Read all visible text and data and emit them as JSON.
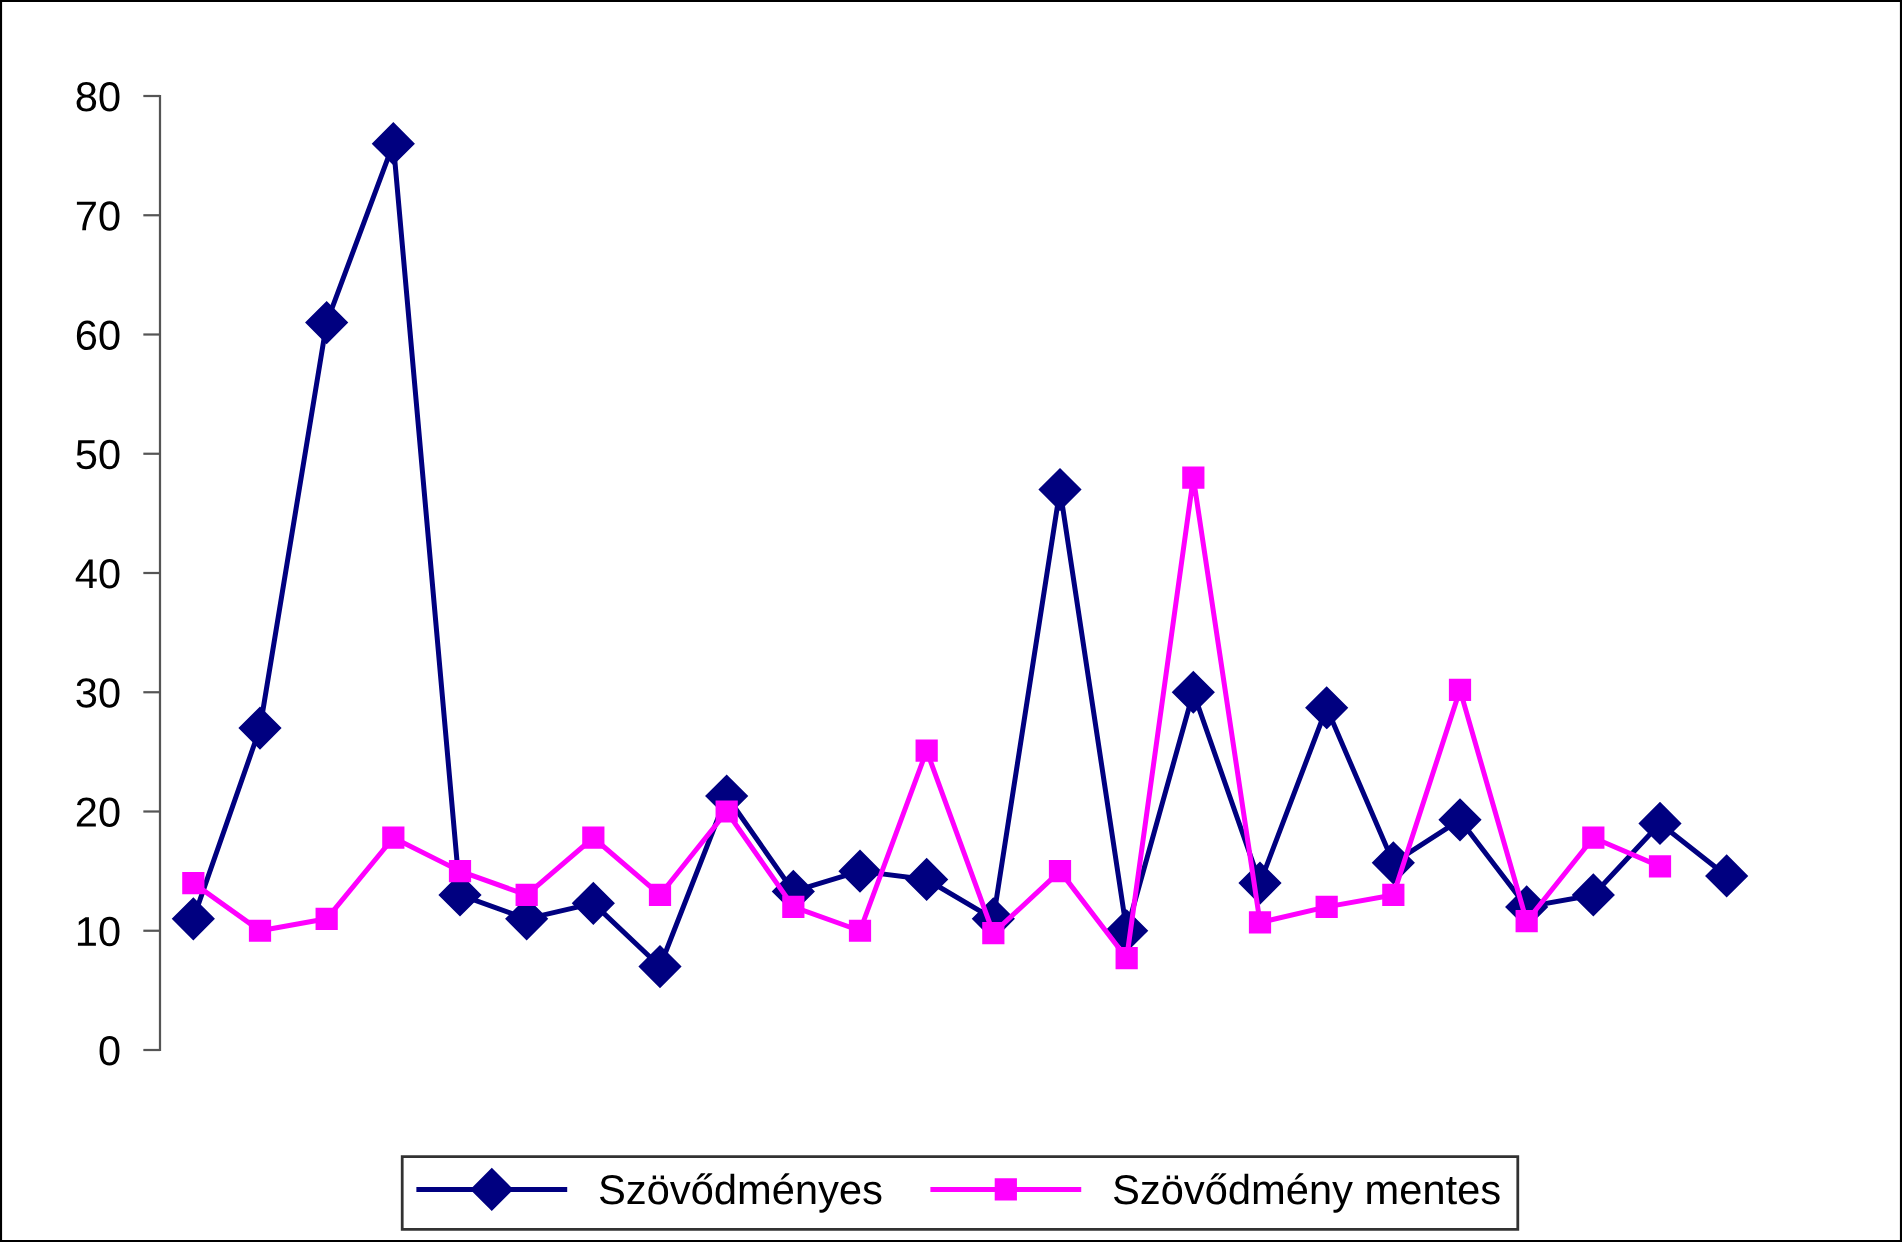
{
  "chart_data": {
    "type": "line",
    "categories": [
      null,
      null,
      null,
      null,
      null,
      null,
      null,
      null,
      null,
      null,
      null,
      null,
      null,
      null,
      null,
      null,
      null,
      null,
      null,
      null,
      null,
      null,
      null,
      null
    ],
    "series": [
      {
        "name": "Szövődményes",
        "color": "#000080",
        "marker": "diamond",
        "values": [
          11,
          27,
          61,
          76,
          13,
          11,
          12.3,
          7,
          21.3,
          13.3,
          15,
          14.3,
          11,
          47,
          10,
          30,
          14,
          28.7,
          15.7,
          19.3,
          12,
          13,
          19,
          14.6
        ]
      },
      {
        "name": "Szövődmény mentes",
        "color": "#ff00ff",
        "marker": "square",
        "values": [
          14,
          10,
          11,
          17.8,
          15,
          13,
          17.8,
          13,
          20,
          12,
          10,
          25.1,
          9.8,
          15,
          7.7,
          48,
          10.7,
          12,
          13,
          30.2,
          10.8,
          17.8,
          15.4,
          null
        ]
      }
    ],
    "ylim": [
      0,
      80
    ],
    "yticks": [
      0,
      10,
      20,
      30,
      40,
      50,
      60,
      70,
      80
    ],
    "grid": false,
    "legend": "bottom",
    "line_style": "solid"
  }
}
